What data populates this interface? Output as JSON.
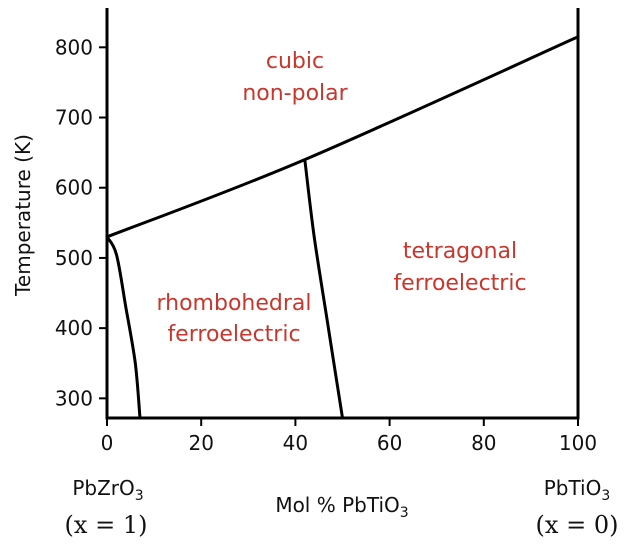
{
  "chart_data": {
    "type": "line",
    "title": "",
    "xlabel_parts": [
      "Mol % PbTiO",
      "3"
    ],
    "ylabel": "Temperature (K)",
    "xlim": [
      0,
      100
    ],
    "ylim": [
      272,
      856
    ],
    "x_ticks": [
      0,
      20,
      40,
      60,
      80,
      100
    ],
    "y_ticks": [
      300,
      400,
      500,
      600,
      700,
      800
    ],
    "grid": false,
    "series": [
      {
        "name": "cubic-transition",
        "points": [
          [
            0,
            530
          ],
          [
            42,
            640
          ],
          [
            100,
            815
          ]
        ]
      },
      {
        "name": "rhombohedral-low-boundary",
        "points": [
          [
            0,
            530
          ],
          [
            2,
            505
          ],
          [
            4,
            430
          ],
          [
            6,
            350
          ],
          [
            7,
            272
          ]
        ]
      },
      {
        "name": "morphotropic-boundary",
        "points": [
          [
            42,
            640
          ],
          [
            44,
            530
          ],
          [
            47,
            400
          ],
          [
            50,
            272
          ]
        ]
      }
    ],
    "region_labels": [
      {
        "id": "cubic",
        "lines": [
          "cubic",
          "non-polar"
        ],
        "color": "#c8372d"
      },
      {
        "id": "tetragonal",
        "lines": [
          "tetragonal",
          "ferroelectric"
        ],
        "color": "#c8372d"
      },
      {
        "id": "rhombohedral",
        "lines": [
          "rhombohedral",
          "ferroelectric"
        ],
        "color": "#c8372d"
      }
    ],
    "end_labels": {
      "left": {
        "compound": [
          "PbZrO",
          "3"
        ],
        "composition": "(x = 1)"
      },
      "right": {
        "compound": [
          "PbTiO",
          "3"
        ],
        "composition": "(x = 0)"
      }
    }
  }
}
